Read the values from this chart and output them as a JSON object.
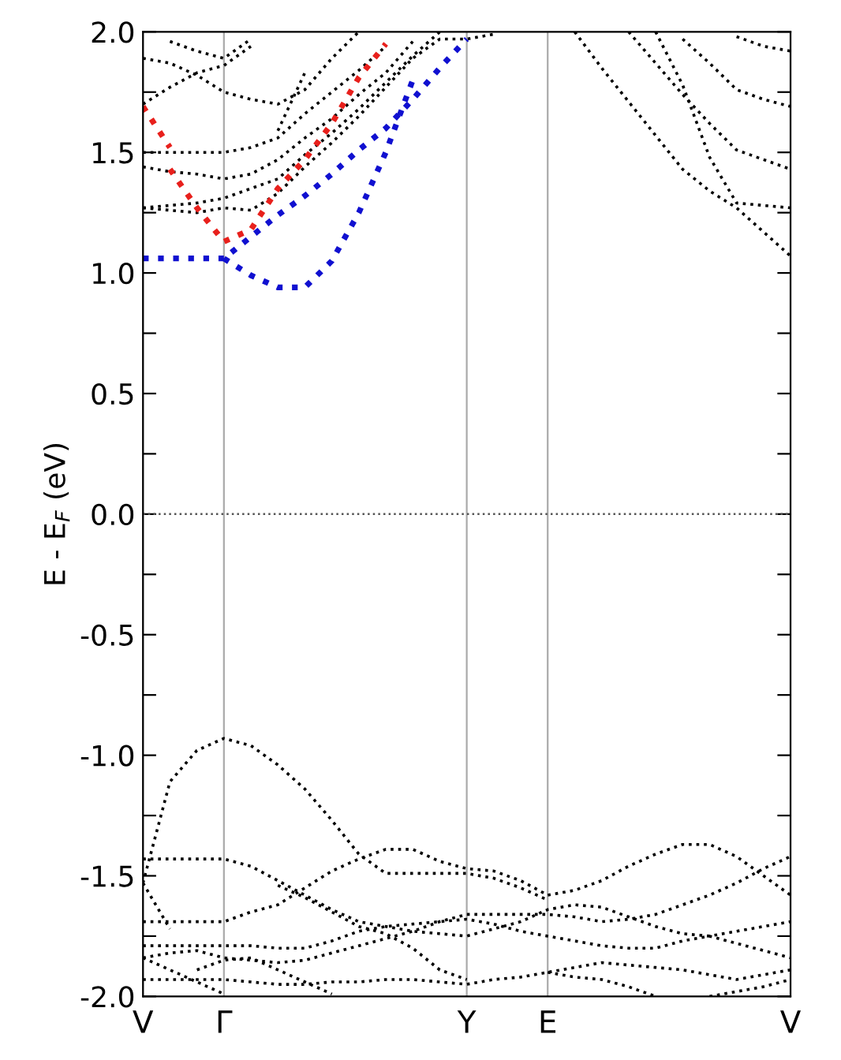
{
  "chart_data": {
    "type": "line",
    "ylabel": "E - E$_{F}$ (eV)",
    "categories": [
      "V",
      null,
      null,
      "Γ",
      null,
      null,
      null,
      null,
      null,
      null,
      null,
      null,
      "Y",
      null,
      null,
      "E",
      null,
      null,
      null,
      null,
      null,
      null,
      null,
      null,
      "V"
    ],
    "ylim": [
      -2.0,
      2.0
    ],
    "yticks": [
      {
        "value": -2.0,
        "label": "-2.0"
      },
      {
        "value": -1.75,
        "label": null
      },
      {
        "value": -1.5,
        "label": "-1.5"
      },
      {
        "value": -1.25,
        "label": null
      },
      {
        "value": -1.0,
        "label": "-1.0"
      },
      {
        "value": -0.75,
        "label": null
      },
      {
        "value": -0.5,
        "label": "-0.5"
      },
      {
        "value": -0.25,
        "label": null
      },
      {
        "value": 0.0,
        "label": "0.0"
      },
      {
        "value": 0.25,
        "label": null
      },
      {
        "value": 0.5,
        "label": "0.5"
      },
      {
        "value": 0.75,
        "label": null
      },
      {
        "value": 1.0,
        "label": "1.0"
      },
      {
        "value": 1.25,
        "label": null
      },
      {
        "value": 1.5,
        "label": "1.5"
      },
      {
        "value": 1.75,
        "label": null
      },
      {
        "value": 2.0,
        "label": "2.0"
      }
    ],
    "grid": "x",
    "line_style": "dotted",
    "ref_lines": [
      {
        "axis": "y",
        "value": 0,
        "color": "#555555",
        "line_style": "dotted"
      }
    ],
    "series": [
      {
        "color": "#000000",
        "values": [
          1.5,
          1.5,
          1.5,
          1.5,
          1.52,
          1.56,
          1.66,
          1.75,
          1.84,
          1.94,
          null,
          null,
          null,
          null,
          null,
          null,
          null,
          null,
          null,
          null,
          null,
          null,
          null,
          null,
          null
        ]
      },
      {
        "color": "#000000",
        "values": [
          1.44,
          1.42,
          1.41,
          1.39,
          1.41,
          1.47,
          1.56,
          1.64,
          1.74,
          1.83,
          1.96,
          null,
          null,
          null,
          null,
          null,
          null,
          null,
          null,
          null,
          null,
          null,
          null,
          null,
          null
        ]
      },
      {
        "color": "#000000",
        "values": [
          1.27,
          1.28,
          1.29,
          1.31,
          1.35,
          1.39,
          1.49,
          1.58,
          1.68,
          1.79,
          1.9,
          2.0,
          null,
          null,
          null,
          null,
          null,
          null,
          null,
          null,
          null,
          null,
          null,
          null,
          null
        ]
      },
      {
        "color": "#000000",
        "values": [
          1.27,
          1.26,
          1.25,
          1.27,
          1.26,
          1.33,
          1.44,
          1.54,
          1.65,
          1.77,
          1.89,
          1.97,
          1.97,
          1.99,
          null,
          null,
          null,
          null,
          null,
          null,
          null,
          null,
          null,
          null,
          null
        ]
      },
      {
        "color": "#000000",
        "values": [
          1.7,
          1.77,
          1.83,
          1.86,
          1.94,
          null,
          null,
          null,
          null,
          null,
          null,
          null,
          null,
          null,
          null,
          null,
          null,
          null,
          null,
          null,
          null,
          null,
          null,
          null,
          null
        ]
      },
      {
        "color": "#000000",
        "values": [
          1.89,
          1.87,
          1.82,
          1.75,
          1.72,
          1.7,
          1.76,
          1.89,
          2.0,
          null,
          null,
          null,
          null,
          null,
          null,
          null,
          null,
          null,
          null,
          null,
          null,
          null,
          null,
          null,
          null
        ]
      },
      {
        "color": "#000000",
        "values": [
          null,
          1.96,
          1.92,
          1.89,
          1.97,
          null,
          null,
          null,
          null,
          null,
          null,
          null,
          null,
          null,
          null,
          null,
          null,
          null,
          null,
          null,
          null,
          null,
          null,
          null,
          null
        ]
      },
      {
        "color": "#000000",
        "values": [
          null,
          null,
          null,
          null,
          null,
          1.59,
          1.83,
          null,
          null,
          null,
          null,
          null,
          null,
          null,
          null,
          null,
          null,
          null,
          null,
          null,
          null,
          null,
          null,
          null,
          null
        ]
      },
      {
        "color": "#000000",
        "values": [
          null,
          null,
          null,
          null,
          null,
          null,
          null,
          null,
          null,
          null,
          null,
          null,
          null,
          null,
          null,
          null,
          2.0,
          1.85,
          1.71,
          1.57,
          1.43,
          1.34,
          1.27,
          1.17,
          1.07
        ]
      },
      {
        "color": "#000000",
        "values": [
          null,
          null,
          null,
          null,
          null,
          null,
          null,
          null,
          null,
          null,
          null,
          null,
          null,
          null,
          null,
          null,
          null,
          null,
          2.0,
          1.87,
          1.74,
          1.62,
          1.51,
          1.47,
          1.43
        ]
      },
      {
        "color": "#000000",
        "values": [
          null,
          null,
          null,
          null,
          null,
          null,
          null,
          null,
          null,
          null,
          null,
          null,
          null,
          null,
          null,
          null,
          null,
          null,
          null,
          2.0,
          1.78,
          1.48,
          1.29,
          1.28,
          1.27
        ]
      },
      {
        "color": "#000000",
        "values": [
          null,
          null,
          null,
          null,
          null,
          null,
          null,
          null,
          null,
          null,
          null,
          null,
          null,
          null,
          null,
          null,
          null,
          null,
          null,
          null,
          1.97,
          1.87,
          1.76,
          1.72,
          1.69
        ]
      },
      {
        "color": "#000000",
        "values": [
          null,
          null,
          null,
          null,
          null,
          null,
          null,
          null,
          null,
          null,
          null,
          null,
          null,
          null,
          null,
          null,
          null,
          null,
          null,
          null,
          null,
          null,
          1.98,
          1.94,
          1.92
        ]
      },
      {
        "color": "#e8201c",
        "values": [
          1.69,
          1.52,
          null,
          null,
          null,
          null,
          null,
          null,
          null,
          null,
          null,
          null,
          null,
          null,
          null,
          null,
          null,
          null,
          null,
          null,
          null,
          null,
          null,
          null,
          null
        ]
      },
      {
        "color": "#e8201c",
        "values": [
          null,
          1.43,
          1.27,
          1.13,
          1.18,
          1.35,
          1.47,
          1.62,
          1.81,
          1.95,
          null,
          null,
          null,
          null,
          null,
          null,
          null,
          null,
          null,
          null,
          null,
          null,
          null,
          null,
          null
        ]
      },
      {
        "color": "#1010d0",
        "values": [
          1.06,
          1.06,
          1.06,
          1.06,
          1.15,
          1.24,
          1.32,
          1.41,
          1.51,
          1.6,
          1.72,
          1.85,
          1.97,
          null,
          null,
          null,
          null,
          null,
          null,
          null,
          null,
          null,
          null,
          null,
          null
        ]
      },
      {
        "color": "#1010d0",
        "values": [
          null,
          null,
          null,
          1.06,
          0.99,
          0.94,
          0.94,
          1.05,
          1.25,
          1.5,
          1.8,
          null,
          null,
          null,
          null,
          null,
          null,
          null,
          null,
          null,
          null,
          null,
          null,
          null,
          null
        ]
      },
      {
        "color": "#000000",
        "values": [
          -1.53,
          -1.11,
          -0.98,
          -0.93,
          -0.96,
          -1.04,
          -1.14,
          -1.27,
          -1.41,
          -1.49,
          -1.49,
          -1.49,
          -1.49,
          -1.51,
          -1.55,
          -1.6,
          null,
          null,
          null,
          null,
          null,
          null,
          null,
          null,
          null
        ]
      },
      {
        "color": "#000000",
        "values": [
          -1.53,
          -1.72,
          null,
          null,
          null,
          null,
          null,
          null,
          null,
          null,
          null,
          null,
          null,
          null,
          null,
          null,
          null,
          null,
          null,
          null,
          null,
          null,
          null,
          null,
          null
        ]
      },
      {
        "color": "#000000",
        "values": [
          -1.43,
          -1.43,
          -1.43,
          -1.43,
          -1.46,
          -1.52,
          -1.58,
          -1.64,
          -1.69,
          -1.71,
          -1.73,
          -1.74,
          -1.75,
          -1.72,
          -1.69,
          -1.64,
          -1.62,
          -1.63,
          -1.67,
          -1.71,
          -1.74,
          -1.75,
          -1.73,
          -1.71,
          -1.69
        ]
      },
      {
        "color": "#000000",
        "values": [
          -1.69,
          -1.69,
          -1.69,
          -1.69,
          -1.65,
          -1.62,
          -1.55,
          -1.48,
          -1.43,
          -1.39,
          -1.39,
          -1.44,
          -1.47,
          -1.48,
          -1.52,
          -1.58,
          -1.56,
          -1.52,
          -1.46,
          -1.41,
          -1.37,
          -1.37,
          -1.42,
          -1.5,
          -1.58
        ]
      },
      {
        "color": "#000000",
        "values": [
          null,
          null,
          null,
          null,
          null,
          -1.54,
          -1.59,
          -1.65,
          -1.71,
          -1.74,
          -1.8,
          -1.89,
          -1.93,
          null,
          null,
          null,
          null,
          null,
          null,
          null,
          null,
          null,
          null,
          null,
          null
        ]
      },
      {
        "color": "#000000",
        "values": [
          -1.84,
          -1.82,
          -1.81,
          -1.84,
          -1.85,
          -1.86,
          -1.85,
          -1.82,
          -1.79,
          -1.76,
          -1.73,
          -1.69,
          -1.66,
          -1.66,
          -1.66,
          -1.66,
          -1.67,
          -1.69,
          -1.68,
          -1.66,
          -1.62,
          -1.58,
          -1.53,
          -1.47,
          -1.42
        ]
      },
      {
        "color": "#000000",
        "values": [
          -1.79,
          -1.79,
          -1.79,
          -1.79,
          -1.79,
          -1.8,
          -1.8,
          -1.77,
          -1.73,
          -1.71,
          -1.7,
          -1.69,
          -1.68,
          -1.7,
          -1.73,
          -1.75,
          -1.77,
          -1.79,
          -1.8,
          -1.8,
          -1.77,
          -1.75,
          -1.78,
          -1.81,
          -1.84
        ]
      },
      {
        "color": "#000000",
        "values": [
          -1.93,
          -1.93,
          -1.93,
          -1.93,
          -1.94,
          -1.95,
          -1.95,
          -1.94,
          -1.94,
          -1.93,
          -1.93,
          -1.94,
          -1.95,
          -1.93,
          -1.92,
          -1.9,
          -1.88,
          -1.86,
          -1.87,
          -1.88,
          -1.89,
          -1.91,
          -1.93,
          -1.91,
          -1.89
        ]
      },
      {
        "color": "#000000",
        "values": [
          -1.84,
          -1.89,
          -1.94,
          -1.99,
          null,
          null,
          null,
          null,
          null,
          null,
          null,
          null,
          null,
          null,
          null,
          null,
          null,
          null,
          null,
          null,
          null,
          null,
          null,
          null,
          null
        ]
      },
      {
        "color": "#000000",
        "values": [
          null,
          null,
          -1.89,
          -1.85,
          -1.84,
          -1.89,
          -1.94,
          -1.99,
          null,
          null,
          null,
          null,
          null,
          null,
          null,
          null,
          null,
          null,
          null,
          null,
          null,
          null,
          null,
          null,
          null
        ]
      },
      {
        "color": "#000000",
        "values": [
          null,
          null,
          null,
          null,
          null,
          null,
          null,
          null,
          null,
          null,
          null,
          null,
          null,
          null,
          null,
          -1.9,
          -1.92,
          -1.93,
          -1.96,
          -2.0,
          null,
          null,
          null,
          null,
          null
        ]
      },
      {
        "color": "#000000",
        "values": [
          null,
          null,
          null,
          null,
          null,
          null,
          null,
          null,
          null,
          null,
          null,
          null,
          null,
          null,
          null,
          null,
          null,
          null,
          null,
          null,
          null,
          -2.0,
          -1.98,
          -1.96,
          -1.93
        ]
      }
    ]
  }
}
